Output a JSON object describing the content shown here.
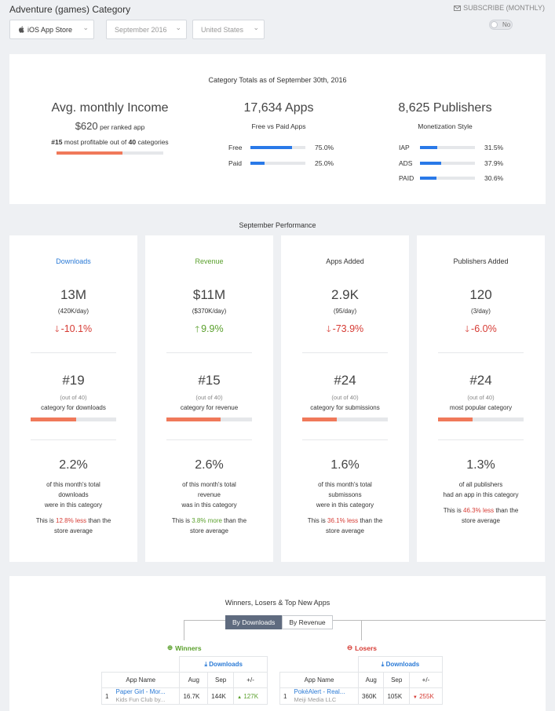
{
  "header": {
    "title": "Adventure (games) Category",
    "store": "iOS App Store",
    "month": "September 2016",
    "country": "United States",
    "subscribe_label": "SUBSCRIBE (MONTHLY)",
    "toggle_label": "No"
  },
  "totals": {
    "title": "Category Totals as of September 30th, 2016",
    "income": {
      "heading": "Avg. monthly Income",
      "amount": "$620",
      "amount_suffix": "per ranked app",
      "rank": "#15",
      "rank_mid": "most profitable out of",
      "rank_total": "40",
      "rank_suffix": "categories",
      "progress": 0.62
    },
    "apps": {
      "heading": "17,634 Apps",
      "subheading": "Free vs Paid Apps",
      "rows": [
        {
          "label": "Free",
          "value": "75.0%",
          "fraction": 0.75
        },
        {
          "label": "Paid",
          "value": "25.0%",
          "fraction": 0.25
        }
      ]
    },
    "publishers": {
      "heading": "8,625 Publishers",
      "subheading": "Monetization Style",
      "rows": [
        {
          "label": "IAP",
          "value": "31.5%",
          "fraction": 0.315
        },
        {
          "label": "ADS",
          "value": "37.9%",
          "fraction": 0.379
        },
        {
          "label": "PAID",
          "value": "30.6%",
          "fraction": 0.306
        }
      ]
    }
  },
  "performance": {
    "title": "September Performance",
    "cards": [
      {
        "title": "Downloads",
        "value": "13M",
        "per_day": "(420K/day)",
        "change": "-10.1%",
        "direction": "down",
        "rank": "#19",
        "rank_of": "(out of 40)",
        "rank_label": "category for downloads",
        "rank_fraction": 0.53,
        "pct": "2.2%",
        "pct_lines": [
          "of this month's total",
          "downloads",
          "were in this category"
        ],
        "compare_pre": "This is ",
        "compare_value": "12.8% less",
        "compare_post": " than the",
        "compare_line2": "store average",
        "compare_color": "red"
      },
      {
        "title": "Revenue",
        "value": "$11M",
        "per_day": "($370K/day)",
        "change": "9.9%",
        "direction": "up",
        "rank": "#15",
        "rank_of": "(out of 40)",
        "rank_label": "category for revenue",
        "rank_fraction": 0.63,
        "pct": "2.6%",
        "pct_lines": [
          "of this month's total",
          "revenue",
          "was in this category"
        ],
        "compare_pre": "This is ",
        "compare_value": "3.8% more",
        "compare_post": " than the",
        "compare_line2": "store average",
        "compare_color": "green"
      },
      {
        "title": "Apps Added",
        "value": "2.9K",
        "per_day": "(95/day)",
        "change": "-73.9%",
        "direction": "down",
        "rank": "#24",
        "rank_of": "(out of 40)",
        "rank_label": "category for submissions",
        "rank_fraction": 0.4,
        "pct": "1.6%",
        "pct_lines": [
          "of this month's total",
          "submissons",
          "were in this category"
        ],
        "compare_pre": "This is ",
        "compare_value": "36.1% less",
        "compare_post": " than the",
        "compare_line2": "store average",
        "compare_color": "red"
      },
      {
        "title": "Publishers Added",
        "value": "120",
        "per_day": "(3/day)",
        "change": "-6.0%",
        "direction": "down",
        "rank": "#24",
        "rank_of": "(out of 40)",
        "rank_label": "most popular category",
        "rank_fraction": 0.4,
        "pct": "1.3%",
        "pct_lines": [
          "of all publishers",
          "had an app in this category",
          ""
        ],
        "compare_pre": "This is ",
        "compare_value": "46.3% less",
        "compare_post": " than the",
        "compare_line2": "store average",
        "compare_color": "red"
      }
    ]
  },
  "winners_losers": {
    "title": "Winners, Losers & Top New Apps",
    "tabs": [
      "By Downloads",
      "By Revenue"
    ],
    "active_tab": 0,
    "winners": {
      "label": "Winners",
      "group_header": "Downloads",
      "columns": [
        "App Name",
        "Aug",
        "Sep",
        "+/-"
      ],
      "rows": [
        {
          "rank": "1",
          "name": "Paper Girl - Mor...",
          "publisher": "Kids Fun Club by...",
          "aug": "16.7K",
          "sep": "144K",
          "change": "127K"
        }
      ]
    },
    "losers": {
      "label": "Losers",
      "group_header": "Downloads",
      "columns": [
        "App Name",
        "Aug",
        "Sep",
        "+/-"
      ],
      "rows": [
        {
          "rank": "1",
          "name": "PokéAlert - Real...",
          "publisher": "Meiji Media LLC",
          "aug": "360K",
          "sep": "105K",
          "change": "255K"
        }
      ]
    }
  },
  "colors": {
    "downloads": "#2a7ad6",
    "revenue": "#5aa02c",
    "negative": "#d63b34",
    "bar_orange": "#f0795a",
    "bar_blue": "#2979e8",
    "tab_active": "#5f6b7f"
  }
}
